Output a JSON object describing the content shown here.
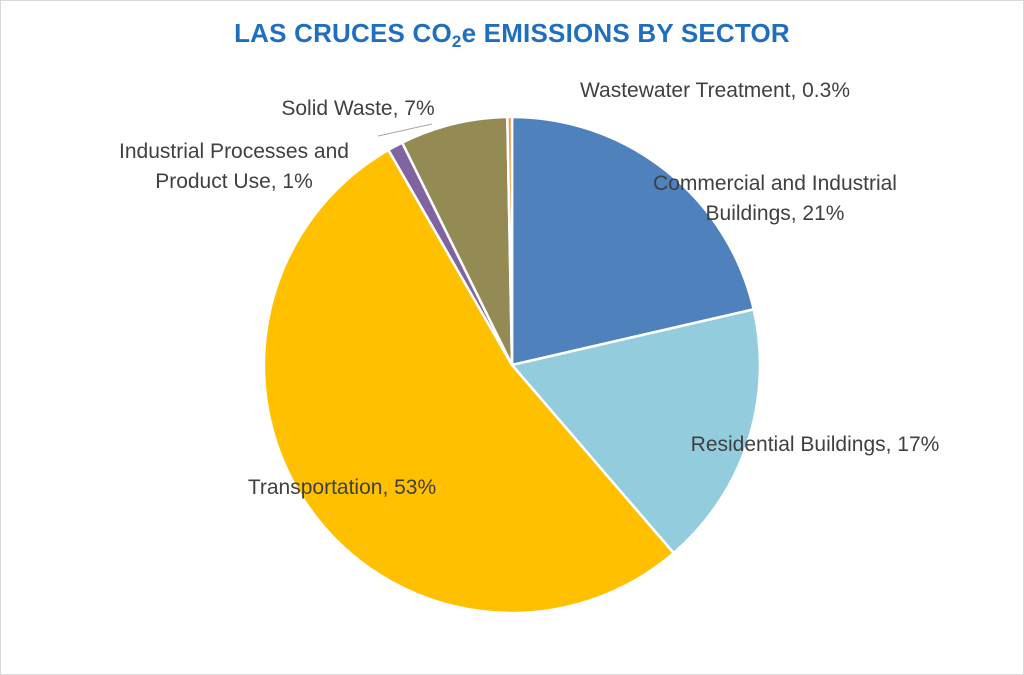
{
  "chart_data": {
    "type": "pie",
    "title": {
      "prefix": "LAS CRUCES CO",
      "subscript": "2",
      "suffix": "e EMISSIONS BY SECTOR"
    },
    "start_angle_deg": 0,
    "direction": "clockwise",
    "slices": [
      {
        "label_lines": [
          "Commercial and Industrial",
          "Buildings, 21%"
        ],
        "value": 21.4,
        "color": "#4f81bd"
      },
      {
        "label_lines": [
          "Residential Buildings, 17%"
        ],
        "value": 17.3,
        "color": "#93cddd"
      },
      {
        "label_lines": [
          "Transportation, 53%"
        ],
        "value": 53.0,
        "color": "#ffc000"
      },
      {
        "label_lines": [
          "Industrial Processes and",
          "Product Use, 1%"
        ],
        "value": 1.0,
        "color": "#8064a2"
      },
      {
        "label_lines": [
          "Solid Waste, 7%"
        ],
        "value": 7.0,
        "color": "#948a54"
      },
      {
        "label_lines": [
          "Wastewater Treatment, 0.3%"
        ],
        "value": 0.3,
        "color": "#f79646"
      }
    ]
  }
}
